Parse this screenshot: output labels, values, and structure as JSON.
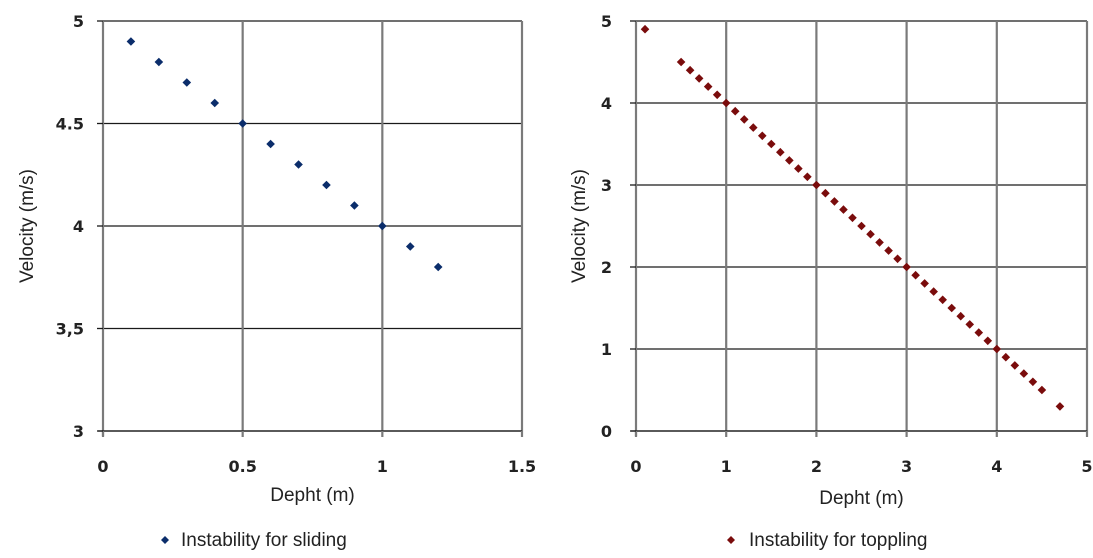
{
  "chart_data": [
    {
      "type": "scatter",
      "title": "",
      "xlabel": "Depht (m)",
      "ylabel": "Velocity (m/s)",
      "xlim": [
        0,
        1.5
      ],
      "ylim": [
        3,
        5
      ],
      "xticks": [
        "0",
        "0.5",
        "1",
        "1.5"
      ],
      "yticks": [
        "3",
        "3,5",
        "4",
        "4.5",
        "5"
      ],
      "grid": true,
      "legend_position": "bottom",
      "marker": "diamond",
      "series": [
        {
          "name": "Instability for sliding",
          "color": "#0b2d6b",
          "x": [
            0.1,
            0.2,
            0.3,
            0.4,
            0.5,
            0.6,
            0.7,
            0.8,
            0.9,
            1.0,
            1.1,
            1.2
          ],
          "y": [
            4.9,
            4.8,
            4.7,
            4.6,
            4.5,
            4.4,
            4.3,
            4.2,
            4.1,
            4.0,
            3.9,
            3.8
          ]
        }
      ]
    },
    {
      "type": "scatter",
      "title": "",
      "xlabel": "Depht (m)",
      "ylabel": "Velocity (m/s)",
      "xlim": [
        0,
        5
      ],
      "ylim": [
        0,
        5
      ],
      "xticks": [
        "0",
        "1",
        "2",
        "3",
        "4",
        "5"
      ],
      "yticks": [
        "0",
        "1",
        "2",
        "3",
        "4",
        "5"
      ],
      "grid": true,
      "legend_position": "bottom",
      "marker": "diamond",
      "series": [
        {
          "name": "Instability for toppling",
          "color": "#7a0c0c",
          "x": [
            0.1,
            0.5,
            0.6,
            0.7,
            0.8,
            0.9,
            1.0,
            1.1,
            1.2,
            1.3,
            1.4,
            1.5,
            1.6,
            1.7,
            1.8,
            1.9,
            2.0,
            2.1,
            2.2,
            2.3,
            2.4,
            2.5,
            2.6,
            2.7,
            2.8,
            2.9,
            3.0,
            3.1,
            3.2,
            3.3,
            3.4,
            3.5,
            3.6,
            3.7,
            3.8,
            3.9,
            4.0,
            4.1,
            4.2,
            4.3,
            4.4,
            4.5,
            4.7
          ],
          "y": [
            4.9,
            4.5,
            4.4,
            4.3,
            4.2,
            4.1,
            4.0,
            3.9,
            3.8,
            3.7,
            3.6,
            3.5,
            3.4,
            3.3,
            3.2,
            3.1,
            3.0,
            2.9,
            2.8,
            2.7,
            2.6,
            2.5,
            2.4,
            2.3,
            2.2,
            2.1,
            2.0,
            1.9,
            1.8,
            1.7,
            1.6,
            1.5,
            1.4,
            1.3,
            1.2,
            1.1,
            1.0,
            0.9,
            0.8,
            0.7,
            0.6,
            0.5,
            0.3
          ]
        }
      ]
    }
  ]
}
